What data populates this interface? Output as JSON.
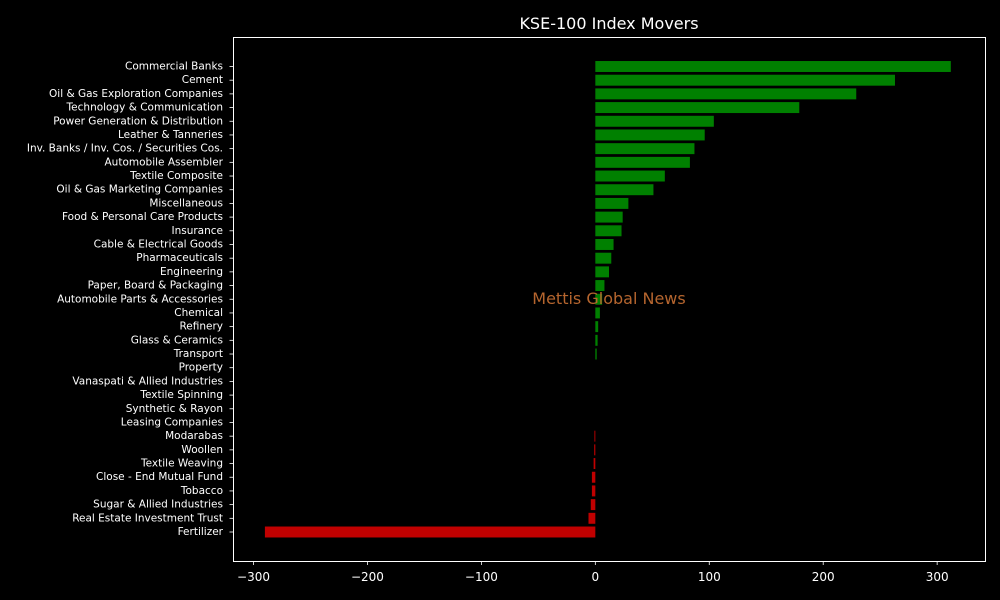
{
  "chart_data": {
    "type": "bar",
    "orientation": "horizontal",
    "title": "KSE-100 Index Movers",
    "watermark": "Mettis Global News",
    "xlabel": "",
    "ylabel": "",
    "xlim": [
      -318,
      342
    ],
    "xticks": [
      -300,
      -200,
      -100,
      0,
      100,
      200,
      300
    ],
    "xtick_labels": [
      "−300",
      "−200",
      "−100",
      "0",
      "100",
      "200",
      "300"
    ],
    "grid": false,
    "colors": {
      "positive": "#008000",
      "negative": "#c00000",
      "background": "#000000",
      "axes": "#ffffff"
    },
    "categories": [
      "Commercial Banks",
      "Cement",
      "Oil & Gas Exploration Companies",
      "Technology & Communication",
      "Power Generation & Distribution",
      "Leather & Tanneries",
      "Inv. Banks / Inv. Cos. / Securities Cos.",
      "Automobile Assembler",
      "Textile Composite",
      "Oil & Gas Marketing Companies",
      "Miscellaneous",
      "Food & Personal Care Products",
      "Insurance",
      "Cable & Electrical Goods",
      "Pharmaceuticals",
      "Engineering",
      "Paper, Board & Packaging",
      "Automobile Parts & Accessories",
      "Chemical",
      "Refinery",
      "Glass & Ceramics",
      "Transport",
      "Property",
      "Vanaspati & Allied Industries",
      "Textile Spinning",
      "Synthetic & Rayon",
      "Leasing Companies",
      "Modarabas",
      "Woollen",
      "Textile Weaving",
      "Close - End Mutual Fund",
      "Tobacco",
      "Sugar & Allied Industries",
      "Real Estate Investment Trust",
      "Fertilizer"
    ],
    "values": [
      312,
      263,
      229,
      179,
      104,
      96,
      87,
      83,
      61,
      51,
      29,
      24,
      23,
      16,
      14,
      12,
      8,
      6,
      4,
      2.5,
      2,
      1.2,
      0,
      0,
      0,
      0,
      0,
      -0.8,
      -1,
      -1.5,
      -3,
      -3,
      -4,
      -6,
      -290
    ]
  }
}
